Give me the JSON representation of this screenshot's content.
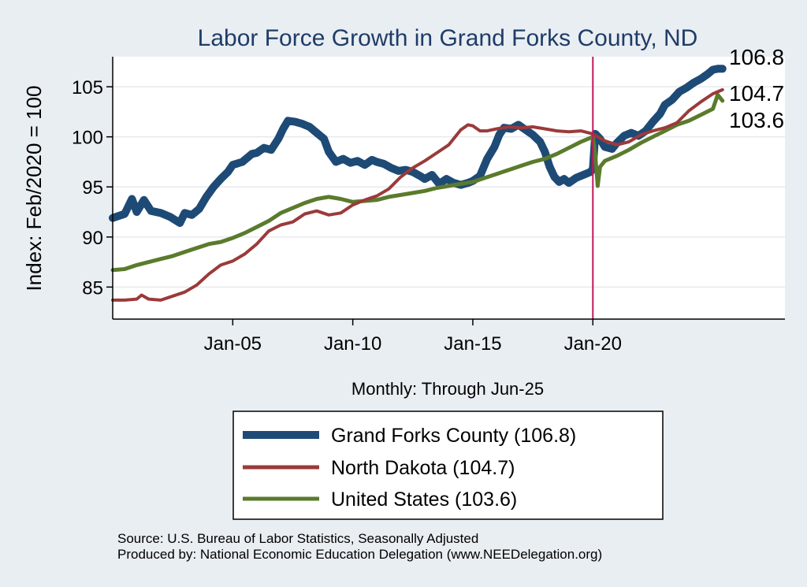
{
  "colors": {
    "background": "#e9eef3",
    "plot_bg": "#ffffff",
    "title": "#1f3c66",
    "grand_forks": "#1e4a76",
    "north_dakota": "#9b3a3a",
    "united_states": "#5a7b2c",
    "marker": "#c2185b",
    "grid": "#e6e9ec"
  },
  "source": {
    "line1": "Source: U.S. Bureau of Labor Statistics, Seasonally Adjusted",
    "line2": "Produced by: National Economic Education Delegation (www.NEEDelegation.org)"
  },
  "chart_data": {
    "type": "line",
    "title": "Labor Force Growth in Grand Forks  County, ND",
    "xlabel": "Monthly: Through Jun-25",
    "ylabel": "Index: Feb/2020 = 100",
    "xlim": [
      2000.0,
      2028.0
    ],
    "ylim": [
      81.8,
      108.0
    ],
    "xticks": [
      {
        "value": 2005.0,
        "label": "Jan-05"
      },
      {
        "value": 2010.0,
        "label": "Jan-10"
      },
      {
        "value": 2015.0,
        "label": "Jan-15"
      },
      {
        "value": 2020.0,
        "label": "Jan-20"
      }
    ],
    "yticks": [
      85,
      90,
      95,
      100,
      105
    ],
    "grid": true,
    "vline": {
      "x": 2020.0
    },
    "end_labels": [
      "106.8",
      "104.7",
      "103.6"
    ],
    "legend": {
      "position": "bottom"
    },
    "series": [
      {
        "name": "Grand Forks  County",
        "legend_label": "Grand Forks  County (106.8)",
        "color_key": "grand_forks",
        "width": 10,
        "x": [
          2000.0,
          2000.5,
          2000.8,
          2001.0,
          2001.3,
          2001.6,
          2002.0,
          2002.4,
          2002.8,
          2003.0,
          2003.3,
          2003.6,
          2003.9,
          2004.2,
          2004.5,
          2004.8,
          2005.0,
          2005.4,
          2005.8,
          2006.0,
          2006.3,
          2006.6,
          2006.9,
          2007.1,
          2007.3,
          2007.6,
          2007.9,
          2008.2,
          2008.5,
          2008.8,
          2009.0,
          2009.3,
          2009.6,
          2009.9,
          2010.2,
          2010.5,
          2010.8,
          2011.0,
          2011.3,
          2011.6,
          2011.9,
          2012.2,
          2012.5,
          2012.8,
          2013.0,
          2013.3,
          2013.6,
          2013.9,
          2014.2,
          2014.5,
          2014.8,
          2015.0,
          2015.3,
          2015.6,
          2015.9,
          2016.1,
          2016.3,
          2016.6,
          2016.9,
          2017.2,
          2017.5,
          2017.8,
          2018.0,
          2018.2,
          2018.4,
          2018.6,
          2018.8,
          2019.0,
          2019.3,
          2019.6,
          2019.9,
          2020.0,
          2020.1,
          2020.3,
          2020.5,
          2020.8,
          2021.0,
          2021.3,
          2021.6,
          2021.9,
          2022.2,
          2022.5,
          2022.8,
          2023.0,
          2023.3,
          2023.6,
          2023.9,
          2024.2,
          2024.5,
          2024.8,
          2025.0,
          2025.2,
          2025.4
        ],
        "values": [
          91.9,
          92.3,
          93.8,
          92.5,
          93.7,
          92.6,
          92.4,
          92.0,
          91.4,
          92.4,
          92.2,
          92.8,
          94.0,
          95.0,
          95.8,
          96.5,
          97.2,
          97.5,
          98.3,
          98.4,
          98.9,
          98.7,
          99.8,
          100.8,
          101.6,
          101.5,
          101.3,
          101.0,
          100.4,
          99.8,
          98.5,
          97.5,
          97.8,
          97.4,
          97.6,
          97.2,
          97.7,
          97.5,
          97.3,
          96.9,
          96.6,
          96.7,
          96.5,
          96.1,
          95.8,
          96.2,
          95.3,
          95.8,
          95.4,
          95.2,
          95.4,
          95.6,
          96.1,
          97.8,
          99.0,
          100.2,
          100.9,
          100.8,
          101.2,
          100.7,
          100.2,
          99.5,
          98.5,
          97.0,
          96.0,
          95.5,
          95.8,
          95.4,
          95.9,
          96.2,
          96.5,
          96.8,
          100.3,
          99.8,
          99.0,
          98.8,
          99.4,
          100.1,
          100.4,
          100.1,
          100.6,
          101.5,
          102.3,
          103.2,
          103.7,
          104.5,
          104.9,
          105.4,
          105.8,
          106.3,
          106.7,
          106.8,
          106.8
        ]
      },
      {
        "name": "North Dakota",
        "legend_label": "North Dakota (104.7)",
        "color_key": "north_dakota",
        "width": 4,
        "x": [
          2000.0,
          2000.5,
          2001.0,
          2001.2,
          2001.5,
          2002.0,
          2002.5,
          2003.0,
          2003.5,
          2004.0,
          2004.5,
          2005.0,
          2005.5,
          2006.0,
          2006.5,
          2007.0,
          2007.5,
          2008.0,
          2008.5,
          2009.0,
          2009.5,
          2010.0,
          2010.5,
          2011.0,
          2011.5,
          2012.0,
          2012.5,
          2013.0,
          2013.5,
          2014.0,
          2014.5,
          2014.8,
          2015.0,
          2015.3,
          2015.6,
          2016.0,
          2016.5,
          2017.0,
          2017.5,
          2018.0,
          2018.5,
          2019.0,
          2019.5,
          2020.0,
          2020.2,
          2020.5,
          2021.0,
          2021.5,
          2022.0,
          2022.5,
          2023.0,
          2023.5,
          2024.0,
          2024.5,
          2025.0,
          2025.4
        ],
        "values": [
          83.7,
          83.7,
          83.8,
          84.2,
          83.8,
          83.7,
          84.1,
          84.5,
          85.2,
          86.3,
          87.2,
          87.6,
          88.3,
          89.3,
          90.6,
          91.2,
          91.5,
          92.3,
          92.6,
          92.2,
          92.4,
          93.2,
          93.7,
          94.1,
          94.8,
          96.0,
          96.9,
          97.6,
          98.4,
          99.2,
          100.7,
          101.2,
          101.1,
          100.6,
          100.6,
          100.8,
          101.0,
          100.9,
          101.0,
          100.8,
          100.6,
          100.5,
          100.6,
          100.3,
          100.0,
          99.6,
          99.2,
          99.5,
          100.2,
          100.6,
          100.9,
          101.4,
          102.6,
          103.5,
          104.3,
          104.7
        ]
      },
      {
        "name": "United States",
        "legend_label": "United States (103.6)",
        "color_key": "united_states",
        "width": 5,
        "x": [
          2000.0,
          2000.5,
          2001.0,
          2001.5,
          2002.0,
          2002.5,
          2003.0,
          2003.5,
          2004.0,
          2004.5,
          2005.0,
          2005.5,
          2006.0,
          2006.5,
          2007.0,
          2007.5,
          2008.0,
          2008.5,
          2009.0,
          2009.5,
          2010.0,
          2010.5,
          2011.0,
          2011.5,
          2012.0,
          2012.5,
          2013.0,
          2013.5,
          2014.0,
          2014.5,
          2015.0,
          2015.5,
          2016.0,
          2016.5,
          2017.0,
          2017.5,
          2018.0,
          2018.5,
          2019.0,
          2019.5,
          2020.0,
          2020.1,
          2020.2,
          2020.3,
          2020.5,
          2021.0,
          2021.5,
          2022.0,
          2022.5,
          2023.0,
          2023.5,
          2024.0,
          2024.5,
          2025.0,
          2025.2,
          2025.4
        ],
        "values": [
          86.7,
          86.8,
          87.2,
          87.5,
          87.8,
          88.1,
          88.5,
          88.9,
          89.3,
          89.5,
          89.9,
          90.4,
          91.0,
          91.6,
          92.4,
          92.9,
          93.4,
          93.8,
          94.0,
          93.8,
          93.5,
          93.6,
          93.7,
          94.0,
          94.2,
          94.4,
          94.6,
          94.9,
          95.1,
          95.3,
          95.5,
          95.9,
          96.3,
          96.7,
          97.1,
          97.5,
          97.8,
          98.3,
          98.9,
          99.5,
          100.0,
          98.2,
          95.1,
          97.0,
          97.6,
          98.1,
          98.7,
          99.4,
          100.0,
          100.6,
          101.2,
          101.6,
          102.2,
          102.8,
          104.2,
          103.6
        ]
      }
    ]
  }
}
